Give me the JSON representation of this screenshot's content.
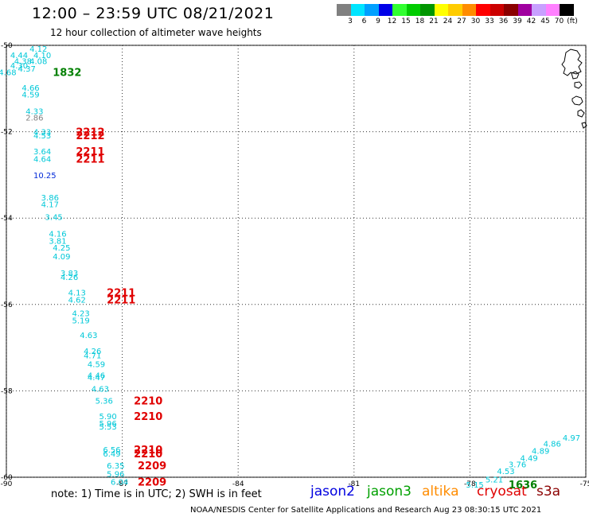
{
  "title": "12:00 – 23:59 UTC 08/21/2021",
  "subtitle": "12 hour collection of altimeter wave heights",
  "scale": {
    "unit": "(ft)",
    "items": [
      {
        "label": "3",
        "color": "#808080"
      },
      {
        "label": "6",
        "color": "#00e5ff"
      },
      {
        "label": "9",
        "color": "#00a0ff"
      },
      {
        "label": "12",
        "color": "#0000e8"
      },
      {
        "label": "15",
        "color": "#30ff30"
      },
      {
        "label": "18",
        "color": "#00cc00"
      },
      {
        "label": "21",
        "color": "#009600"
      },
      {
        "label": "24",
        "color": "#ffff00"
      },
      {
        "label": "27",
        "color": "#ffcc00"
      },
      {
        "label": "30",
        "color": "#ff8c00"
      },
      {
        "label": "33",
        "color": "#ff0000"
      },
      {
        "label": "36",
        "color": "#cc0000"
      },
      {
        "label": "39",
        "color": "#8b0000"
      },
      {
        "label": "42",
        "color": "#a000a0"
      },
      {
        "label": "45",
        "color": "#c8a0ff"
      },
      {
        "label": "70",
        "color": "#ff80ff"
      },
      {
        "label": "",
        "color": "#000000"
      }
    ]
  },
  "map": {
    "lon_ticks": [
      "-90",
      "-87",
      "-84",
      "-81",
      "-78",
      "-75"
    ],
    "lat_ticks": [
      "-50",
      "-52",
      "-54",
      "-56",
      "-58",
      "-60"
    ],
    "lon_range": [
      -90,
      -75
    ],
    "lat_range": [
      -60,
      -50
    ],
    "time_labels": [
      {
        "text": "1832",
        "lon": -88.8,
        "lat": -50.62,
        "color": "#008000"
      },
      {
        "text": "2212",
        "lon": -88.2,
        "lat": -52.0,
        "color": "#e00000"
      },
      {
        "text": "2212",
        "lon": -88.2,
        "lat": -52.08,
        "color": "#e00000"
      },
      {
        "text": "2211",
        "lon": -88.2,
        "lat": -52.45,
        "color": "#e00000"
      },
      {
        "text": "2211",
        "lon": -88.2,
        "lat": -52.62,
        "color": "#e00000"
      },
      {
        "text": "2211",
        "lon": -87.4,
        "lat": -55.72,
        "color": "#e00000"
      },
      {
        "text": "2211",
        "lon": -87.4,
        "lat": -55.88,
        "color": "#e00000"
      },
      {
        "text": "2210",
        "lon": -86.7,
        "lat": -58.22,
        "color": "#e00000"
      },
      {
        "text": "2210",
        "lon": -86.7,
        "lat": -58.58,
        "color": "#e00000"
      },
      {
        "text": "2210",
        "lon": -86.7,
        "lat": -59.36,
        "color": "#e00000"
      },
      {
        "text": "2210",
        "lon": -86.7,
        "lat": -59.45,
        "color": "#e00000"
      },
      {
        "text": "2209",
        "lon": -86.6,
        "lat": -59.72,
        "color": "#e00000"
      },
      {
        "text": "2209",
        "lon": -86.6,
        "lat": -60.1,
        "color": "#e00000"
      },
      {
        "text": "1636",
        "lon": -77.0,
        "lat": -60.17,
        "color": "#008000"
      }
    ],
    "swh_points": [
      {
        "text": "4.12",
        "lon": -89.4,
        "lat": -50.07,
        "color": "#00c8d8"
      },
      {
        "text": "4.44",
        "lon": -89.9,
        "lat": -50.22,
        "color": "#00c8d8"
      },
      {
        "text": "4.10",
        "lon": -89.3,
        "lat": -50.22,
        "color": "#00c8d8"
      },
      {
        "text": "4.38",
        "lon": -89.8,
        "lat": -50.36,
        "color": "#00c8d8"
      },
      {
        "text": "4.08",
        "lon": -89.4,
        "lat": -50.36,
        "color": "#00c8d8"
      },
      {
        "text": "4.30",
        "lon": -89.9,
        "lat": -50.46,
        "color": "#00c8d8"
      },
      {
        "text": "4.37",
        "lon": -89.7,
        "lat": -50.53,
        "color": "#00c8d8"
      },
      {
        "text": "4.68",
        "lon": -90.2,
        "lat": -50.62,
        "color": "#00c8d8"
      },
      {
        "text": "4.66",
        "lon": -89.6,
        "lat": -50.98,
        "color": "#00c8d8"
      },
      {
        "text": "4.59",
        "lon": -89.6,
        "lat": -51.13,
        "color": "#00c8d8"
      },
      {
        "text": "4.33",
        "lon": -89.5,
        "lat": -51.52,
        "color": "#00c8d8"
      },
      {
        "text": "2.86",
        "lon": -89.5,
        "lat": -51.67,
        "color": "#808080"
      },
      {
        "text": "4.33",
        "lon": -89.3,
        "lat": -52.0,
        "color": "#00c8d8"
      },
      {
        "text": "4.53",
        "lon": -89.3,
        "lat": -52.08,
        "color": "#00c8d8"
      },
      {
        "text": "3.64",
        "lon": -89.3,
        "lat": -52.45,
        "color": "#00c8d8"
      },
      {
        "text": "4.64",
        "lon": -89.3,
        "lat": -52.62,
        "color": "#00c8d8"
      },
      {
        "text": "10.25",
        "lon": -89.3,
        "lat": -53.0,
        "color": "#0028d8"
      },
      {
        "text": "3.86",
        "lon": -89.1,
        "lat": -53.52,
        "color": "#00c8d8"
      },
      {
        "text": "4.17",
        "lon": -89.1,
        "lat": -53.67,
        "color": "#00c8d8"
      },
      {
        "text": "3.45",
        "lon": -89.0,
        "lat": -53.97,
        "color": "#00c8d8"
      },
      {
        "text": "4.16",
        "lon": -88.9,
        "lat": -54.36,
        "color": "#00c8d8"
      },
      {
        "text": "3.81",
        "lon": -88.9,
        "lat": -54.52,
        "color": "#00c8d8"
      },
      {
        "text": "4.25",
        "lon": -88.8,
        "lat": -54.68,
        "color": "#00c8d8"
      },
      {
        "text": "4.09",
        "lon": -88.8,
        "lat": -54.88,
        "color": "#00c8d8"
      },
      {
        "text": "3.83",
        "lon": -88.6,
        "lat": -55.27,
        "color": "#00c8d8"
      },
      {
        "text": "4.26",
        "lon": -88.6,
        "lat": -55.36,
        "color": "#00c8d8"
      },
      {
        "text": "4.13",
        "lon": -88.4,
        "lat": -55.72,
        "color": "#00c8d8"
      },
      {
        "text": "4.62",
        "lon": -88.4,
        "lat": -55.88,
        "color": "#00c8d8"
      },
      {
        "text": "4.23",
        "lon": -88.3,
        "lat": -56.2,
        "color": "#00c8d8"
      },
      {
        "text": "5.19",
        "lon": -88.3,
        "lat": -56.36,
        "color": "#00c8d8"
      },
      {
        "text": "4.63",
        "lon": -88.1,
        "lat": -56.7,
        "color": "#00c8d8"
      },
      {
        "text": "4.26",
        "lon": -88.0,
        "lat": -57.07,
        "color": "#00c8d8"
      },
      {
        "text": "4.71",
        "lon": -88.0,
        "lat": -57.17,
        "color": "#00c8d8"
      },
      {
        "text": "4.59",
        "lon": -87.9,
        "lat": -57.38,
        "color": "#00c8d8"
      },
      {
        "text": "4.46",
        "lon": -87.9,
        "lat": -57.63,
        "color": "#00c8d8"
      },
      {
        "text": "4.47",
        "lon": -87.9,
        "lat": -57.68,
        "color": "#00c8d8"
      },
      {
        "text": "4.63",
        "lon": -87.8,
        "lat": -57.95,
        "color": "#00c8d8"
      },
      {
        "text": "5.36",
        "lon": -87.7,
        "lat": -58.22,
        "color": "#00c8d8"
      },
      {
        "text": "5.90",
        "lon": -87.6,
        "lat": -58.58,
        "color": "#00c8d8"
      },
      {
        "text": "5.96",
        "lon": -87.6,
        "lat": -58.75,
        "color": "#00c8d8"
      },
      {
        "text": "5.53",
        "lon": -87.6,
        "lat": -58.82,
        "color": "#00c8d8"
      },
      {
        "text": "6.56",
        "lon": -87.5,
        "lat": -59.36,
        "color": "#00c8d8"
      },
      {
        "text": "6.49",
        "lon": -87.5,
        "lat": -59.45,
        "color": "#00c8d8"
      },
      {
        "text": "6.35",
        "lon": -87.4,
        "lat": -59.72,
        "color": "#00c8d8"
      },
      {
        "text": "5.96",
        "lon": -87.4,
        "lat": -59.92,
        "color": "#00c8d8"
      },
      {
        "text": "6.04",
        "lon": -87.3,
        "lat": -60.1,
        "color": "#00c8d8"
      },
      {
        "text": "5.15",
        "lon": -78.1,
        "lat": -60.17,
        "color": "#00c8d8"
      },
      {
        "text": "5.21",
        "lon": -77.6,
        "lat": -60.05,
        "color": "#00c8d8"
      },
      {
        "text": "4.53",
        "lon": -77.3,
        "lat": -59.85,
        "color": "#00c8d8"
      },
      {
        "text": "3.76",
        "lon": -77.0,
        "lat": -59.7,
        "color": "#00c8d8"
      },
      {
        "text": "4.49",
        "lon": -76.7,
        "lat": -59.55,
        "color": "#00c8d8"
      },
      {
        "text": "4.89",
        "lon": -76.4,
        "lat": -59.38,
        "color": "#00c8d8"
      },
      {
        "text": "4.86",
        "lon": -76.1,
        "lat": -59.22,
        "color": "#00c8d8"
      },
      {
        "text": "4.97",
        "lon": -75.6,
        "lat": -59.08,
        "color": "#00c8d8"
      }
    ]
  },
  "note": "note:  1) Time is in UTC;  2) SWH is in feet",
  "satellites": [
    {
      "name": "jason2",
      "color": "#0000e0"
    },
    {
      "name": "jason3",
      "color": "#00a000"
    },
    {
      "name": "altika",
      "color": "#ff8c00"
    },
    {
      "name": "cryosat",
      "color": "#e00000"
    },
    {
      "name": "s3a",
      "color": "#8b0000"
    }
  ],
  "credit": "NOAA/NESDIS Center for Satellite Applications and Research     Aug 23 08:30:15 UTC 2021"
}
